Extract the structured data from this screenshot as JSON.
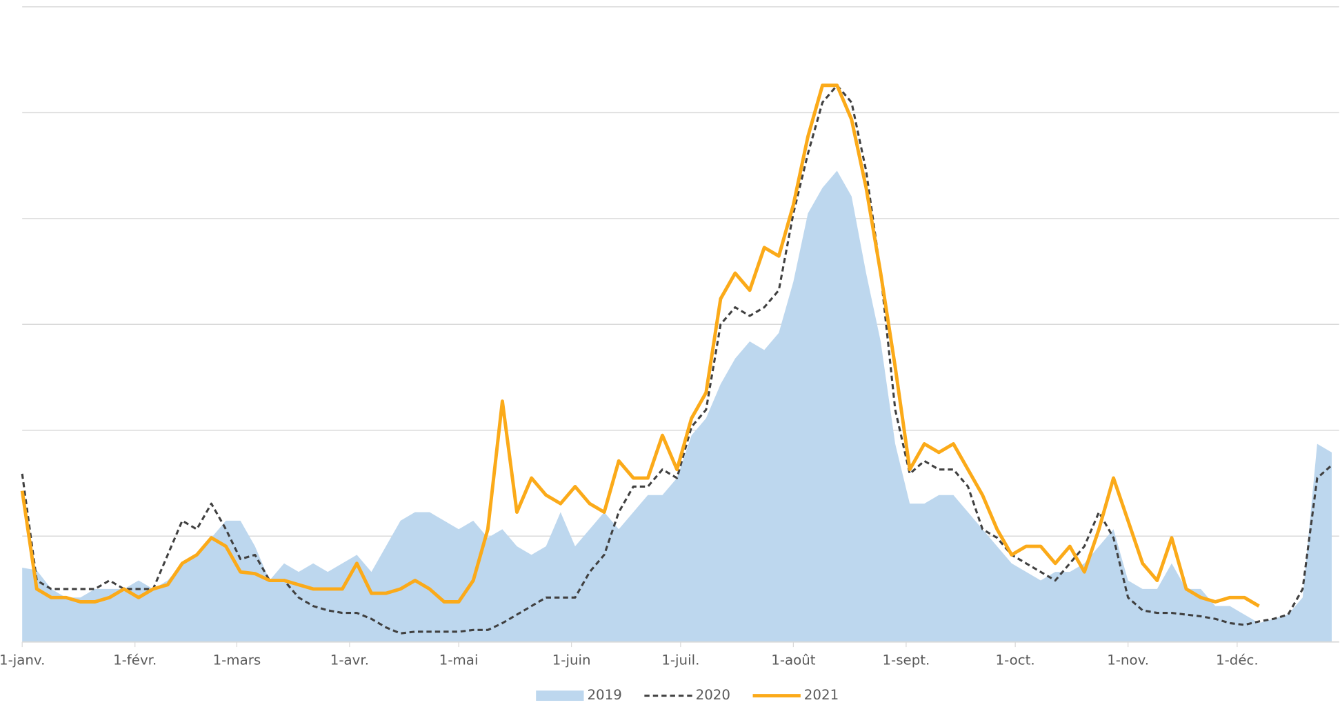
{
  "chart_data": {
    "type": "line",
    "x": [
      0,
      4,
      8,
      12,
      16,
      20,
      24,
      28,
      32,
      36,
      40,
      44,
      48,
      52,
      56,
      60,
      64,
      68,
      72,
      76,
      80,
      84,
      88,
      92,
      96,
      100,
      104,
      108,
      112,
      116,
      120,
      124,
      128,
      132,
      136,
      140,
      144,
      148,
      152,
      156,
      160,
      164,
      168,
      172,
      176,
      180,
      184,
      188,
      192,
      196,
      200,
      204,
      208,
      212,
      216,
      220,
      224,
      228,
      232,
      236,
      240,
      244,
      248,
      252,
      256,
      260,
      264,
      268,
      272,
      276,
      280,
      284,
      288,
      292,
      296,
      300,
      304,
      308,
      312,
      316,
      320,
      324,
      328,
      332,
      336,
      340,
      344,
      348,
      352,
      356,
      360
    ],
    "xlim": [
      0,
      362
    ],
    "xticks": [
      {
        "value": 0,
        "label": "1-janv."
      },
      {
        "value": 31,
        "label": "1-févr."
      },
      {
        "value": 59,
        "label": "1-mars"
      },
      {
        "value": 90,
        "label": "1-avr."
      },
      {
        "value": 120,
        "label": "1-mai"
      },
      {
        "value": 151,
        "label": "1-juin"
      },
      {
        "value": 181,
        "label": "1-juil."
      },
      {
        "value": 212,
        "label": "1-août"
      },
      {
        "value": 243,
        "label": "1-sept."
      },
      {
        "value": 273,
        "label": "1-oct."
      },
      {
        "value": 304,
        "label": "1-nov."
      },
      {
        "value": 334,
        "label": "1-déc."
      }
    ],
    "ylim": [
      0,
      744
    ],
    "yticks": [
      0,
      124,
      248,
      372,
      496,
      620,
      744
    ],
    "grid": true,
    "legend": "bottom",
    "series": [
      {
        "name": "2019",
        "style": "area",
        "color": "#bdd7ee",
        "values": [
          87,
          84,
          62,
          52,
          52,
          62,
          62,
          62,
          72,
          62,
          72,
          92,
          102,
          122,
          142,
          142,
          112,
          72,
          92,
          82,
          92,
          82,
          92,
          102,
          82,
          112,
          142,
          152,
          152,
          142,
          132,
          142,
          122,
          132,
          112,
          102,
          112,
          152,
          112,
          132,
          152,
          132,
          152,
          172,
          172,
          192,
          242,
          262,
          302,
          332,
          352,
          342,
          362,
          422,
          502,
          532,
          552,
          522,
          432,
          352,
          232,
          162,
          162,
          172,
          172,
          152,
          132,
          112,
          92,
          82,
          72,
          82,
          82,
          92,
          112,
          132,
          72,
          62,
          62,
          92,
          62,
          62,
          42,
          42,
          32,
          22,
          27,
          32,
          52,
          232,
          222
        ]
      },
      {
        "name": "2020",
        "style": "dashed",
        "color": "#404040",
        "values": [
          197,
          72,
          62,
          62,
          62,
          62,
          72,
          62,
          62,
          62,
          102,
          142,
          132,
          162,
          132,
          97,
          102,
          72,
          72,
          52,
          42,
          37,
          34,
          34,
          27,
          17,
          10,
          12,
          12,
          12,
          12,
          14,
          14,
          22,
          32,
          42,
          52,
          52,
          52,
          82,
          102,
          152,
          182,
          182,
          202,
          192,
          252,
          272,
          372,
          392,
          382,
          392,
          412,
          502,
          572,
          632,
          652,
          632,
          552,
          432,
          272,
          197,
          212,
          202,
          202,
          182,
          132,
          122,
          102,
          92,
          82,
          72,
          92,
          112,
          152,
          122,
          52,
          37,
          34,
          34,
          32,
          30,
          27,
          22,
          20,
          24,
          27,
          32,
          62,
          192,
          207
        ]
      },
      {
        "name": "2021",
        "style": "solid",
        "color": "#fbaa19",
        "values": [
          177,
          62,
          52,
          52,
          47,
          47,
          52,
          62,
          52,
          62,
          67,
          92,
          102,
          122,
          112,
          82,
          80,
          72,
          72,
          67,
          62,
          62,
          62,
          92,
          57,
          57,
          62,
          72,
          62,
          47,
          47,
          72,
          132,
          282,
          152,
          192,
          172,
          162,
          182,
          162,
          152,
          212,
          192,
          192,
          242,
          202,
          262,
          292,
          402,
          432,
          412,
          462,
          452,
          512,
          592,
          652,
          652,
          612,
          532,
          432,
          322,
          202,
          232,
          222,
          232,
          202,
          172,
          132,
          102,
          112,
          112,
          92,
          112,
          82,
          132,
          192,
          142,
          92,
          72,
          122,
          62,
          52,
          47,
          52,
          52,
          42,
          null,
          null,
          null,
          null,
          null
        ]
      }
    ]
  }
}
